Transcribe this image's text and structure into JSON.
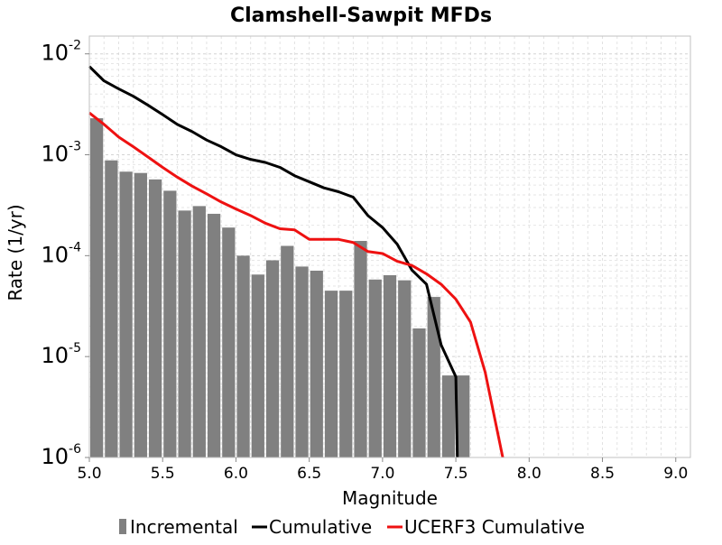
{
  "chart_data": {
    "type": "bar",
    "title": "Clamshell-Sawpit MFDs",
    "xlabel": "Magnitude",
    "ylabel": "Rate (1/yr)",
    "xlim": [
      5.0,
      9.1
    ],
    "ylim": [
      1e-06,
      0.015
    ],
    "yscale": "log",
    "grid": true,
    "legend_position": "bottom",
    "x_ticks": [
      "5.0",
      "5.5",
      "6.0",
      "6.5",
      "7.0",
      "7.5",
      "8.0",
      "8.5",
      "9.0"
    ],
    "y_ticks": [
      {
        "base": "10",
        "exp": "-6",
        "value": 1e-06
      },
      {
        "base": "10",
        "exp": "-5",
        "value": 1e-05
      },
      {
        "base": "10",
        "exp": "-4",
        "value": 0.0001
      },
      {
        "base": "10",
        "exp": "-3",
        "value": 0.001
      },
      {
        "base": "10",
        "exp": "-2",
        "value": 0.01
      }
    ],
    "series": [
      {
        "name": "Incremental",
        "type": "bar",
        "color": "#808080",
        "bin_width": 0.1,
        "x": [
          5.0,
          5.1,
          5.2,
          5.3,
          5.4,
          5.5,
          5.6,
          5.7,
          5.8,
          5.9,
          6.0,
          6.1,
          6.2,
          6.3,
          6.4,
          6.5,
          6.6,
          6.7,
          6.8,
          6.9,
          7.0,
          7.1,
          7.2,
          7.3,
          7.4,
          7.5
        ],
        "values": [
          0.0023,
          0.00088,
          0.00068,
          0.00066,
          0.00057,
          0.00044,
          0.00028,
          0.00031,
          0.00026,
          0.00019,
          0.0001,
          6.5e-05,
          9e-05,
          0.000125,
          7.8e-05,
          7.1e-05,
          4.5e-05,
          4.5e-05,
          0.00014,
          5.8e-05,
          6.4e-05,
          5.7e-05,
          1.9e-05,
          3.9e-05,
          6.5e-06,
          6.5e-06
        ]
      },
      {
        "name": "Cumulative",
        "type": "line",
        "color": "#000000",
        "x": [
          5.0,
          5.1,
          5.2,
          5.3,
          5.4,
          5.5,
          5.6,
          5.7,
          5.8,
          5.9,
          6.0,
          6.1,
          6.2,
          6.3,
          6.4,
          6.5,
          6.6,
          6.7,
          6.8,
          6.9,
          7.0,
          7.1,
          7.2,
          7.3,
          7.4,
          7.5,
          7.51
        ],
        "values": [
          0.0075,
          0.0054,
          0.0045,
          0.0038,
          0.0031,
          0.0025,
          0.002,
          0.0017,
          0.0014,
          0.0012,
          0.001,
          0.0009,
          0.00084,
          0.00075,
          0.00062,
          0.00054,
          0.00047,
          0.00043,
          0.00038,
          0.00025,
          0.00019,
          0.00013,
          7.2e-05,
          5.2e-05,
          1.3e-05,
          6.3e-06,
          1e-06
        ]
      },
      {
        "name": "UCERF3 Cumulative",
        "type": "line",
        "color": "#ee1111",
        "x": [
          5.0,
          5.1,
          5.2,
          5.3,
          5.4,
          5.5,
          5.6,
          5.7,
          5.8,
          5.9,
          6.0,
          6.1,
          6.2,
          6.3,
          6.4,
          6.5,
          6.6,
          6.7,
          6.8,
          6.9,
          7.0,
          7.1,
          7.2,
          7.3,
          7.4,
          7.5,
          7.6,
          7.7,
          7.82
        ],
        "values": [
          0.0026,
          0.002,
          0.0015,
          0.0012,
          0.00095,
          0.00075,
          0.0006,
          0.00049,
          0.00041,
          0.00034,
          0.00029,
          0.00025,
          0.00021,
          0.000185,
          0.00018,
          0.000145,
          0.000145,
          0.000145,
          0.000135,
          0.00011,
          0.000105,
          8.8e-05,
          8e-05,
          6.6e-05,
          5.2e-05,
          3.7e-05,
          2.2e-05,
          7e-06,
          1e-06
        ]
      }
    ]
  }
}
